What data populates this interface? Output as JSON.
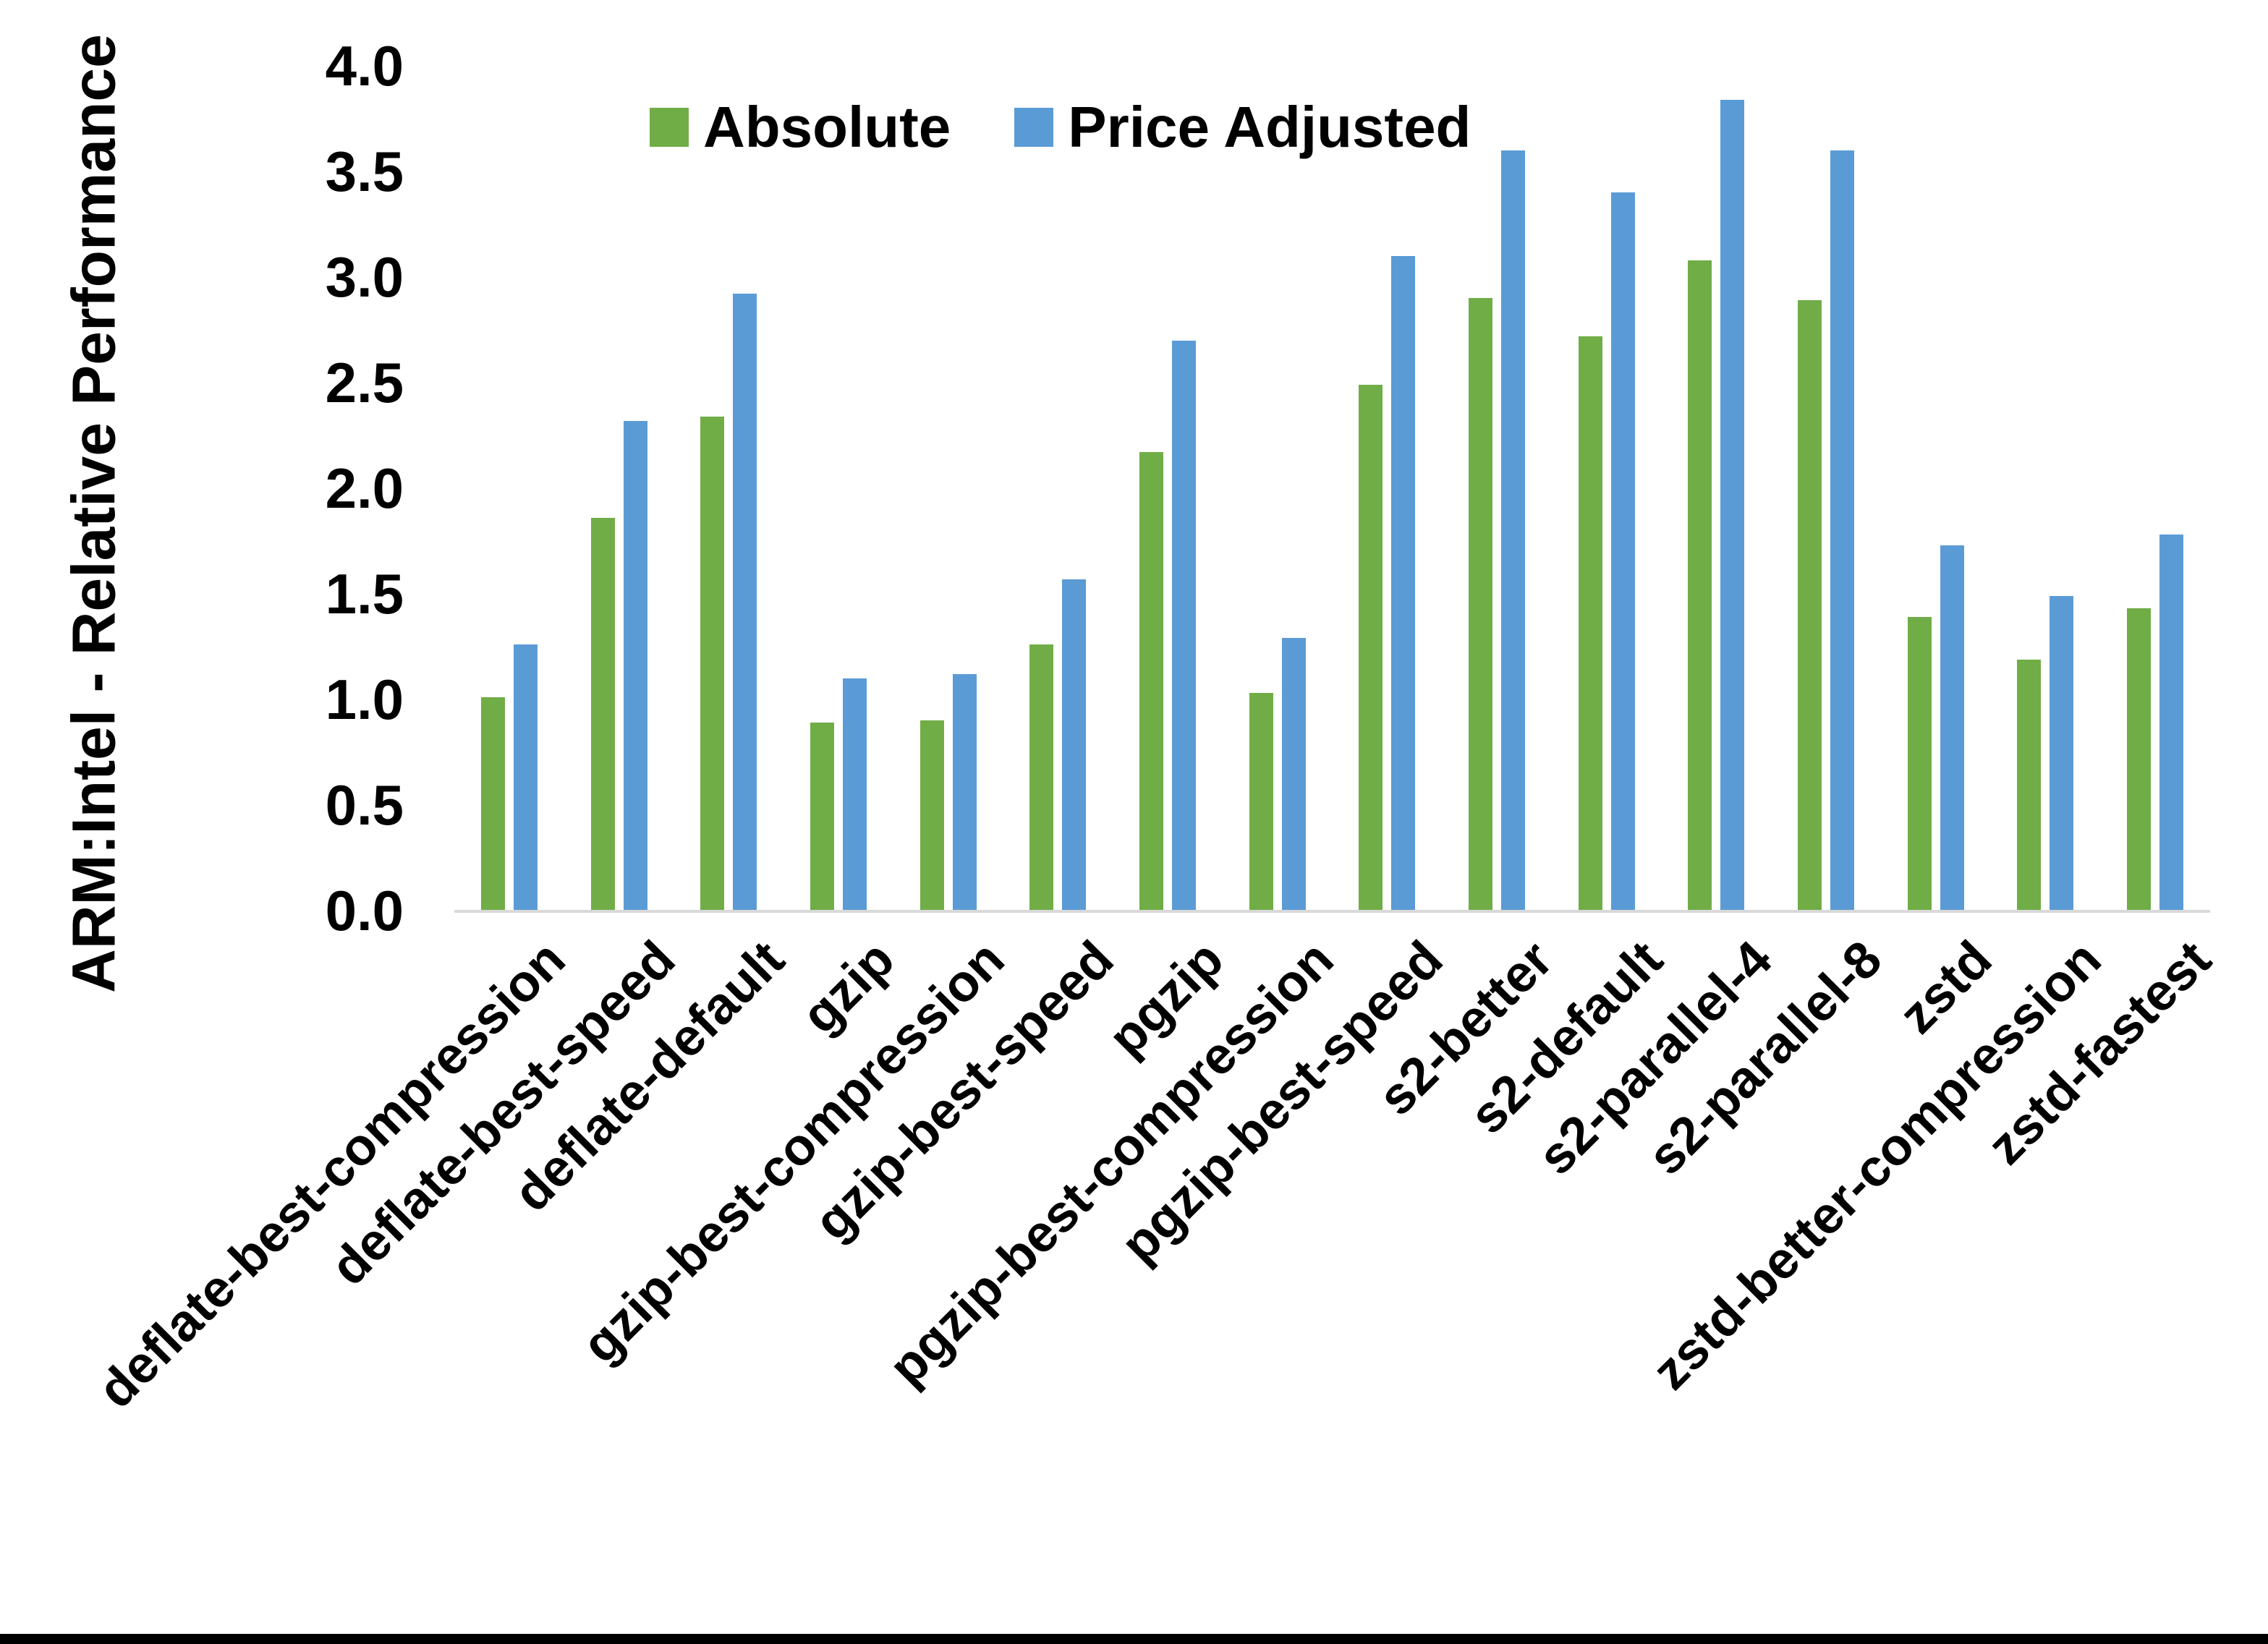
{
  "chart_data": {
    "type": "bar",
    "title": "",
    "ylabel": "ARM:Intel - Relative Performance",
    "xlabel": "",
    "ylim": [
      0.0,
      4.0
    ],
    "ytick_step": 0.5,
    "ytick_labels": [
      "0.0",
      "0.5",
      "1.0",
      "1.5",
      "2.0",
      "2.5",
      "3.0",
      "3.5",
      "4.0"
    ],
    "grid": false,
    "legend_position": "top-center",
    "categories": [
      "deflate-best-compression",
      "deflate-best-speed",
      "deflate-default",
      "gzip",
      "gzip-best-compression",
      "gzip-best-speed",
      "pgzip",
      "pgzip-best-compression",
      "pgzip-best-speed",
      "s2-better",
      "s2-default",
      "s2-parallel-4",
      "s2-parallel-8",
      "zstd",
      "zstd-better-compression",
      "zstd-fastest"
    ],
    "series": [
      {
        "name": "Absolute",
        "color": "#70AD47",
        "values": [
          1.01,
          1.86,
          2.34,
          0.89,
          0.9,
          1.26,
          2.17,
          1.03,
          2.49,
          2.9,
          2.72,
          3.08,
          2.89,
          1.39,
          1.19,
          1.43
        ]
      },
      {
        "name": "Price Adjusted",
        "color": "#5B9BD5",
        "values": [
          1.26,
          2.32,
          2.92,
          1.1,
          1.12,
          1.57,
          2.7,
          1.29,
          3.1,
          3.6,
          3.4,
          3.84,
          3.6,
          1.73,
          1.49,
          1.78
        ]
      }
    ],
    "colors": {
      "axis_line": "#D9D9D9",
      "background": "#FFFFFF",
      "bottom_border": "#000000",
      "text": "#000000"
    }
  }
}
